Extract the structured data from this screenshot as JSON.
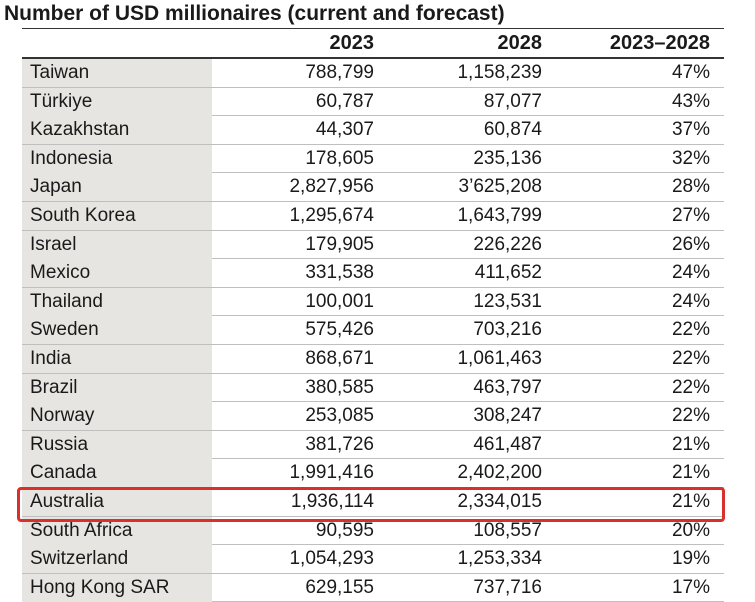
{
  "title": "Number of USD millionaires (current and forecast)",
  "columns": [
    "",
    "2023",
    "2028",
    "2023–2028"
  ],
  "rows": [
    {
      "country": "Taiwan",
      "y2023": "788,799",
      "y2028": "1,158,239",
      "growth": "47%"
    },
    {
      "country": "Türkiye",
      "y2023": "60,787",
      "y2028": "87,077",
      "growth": "43%"
    },
    {
      "country": "Kazakhstan",
      "y2023": "44,307",
      "y2028": "60,874",
      "growth": "37%"
    },
    {
      "country": "Indonesia",
      "y2023": "178,605",
      "y2028": "235,136",
      "growth": "32%"
    },
    {
      "country": "Japan",
      "y2023": "2,827,956",
      "y2028": "3’625,208",
      "growth": "28%"
    },
    {
      "country": "South Korea",
      "y2023": "1,295,674",
      "y2028": "1,643,799",
      "growth": "27%"
    },
    {
      "country": "Israel",
      "y2023": "179,905",
      "y2028": "226,226",
      "growth": "26%"
    },
    {
      "country": "Mexico",
      "y2023": "331,538",
      "y2028": "411,652",
      "growth": "24%"
    },
    {
      "country": "Thailand",
      "y2023": "100,001",
      "y2028": "123,531",
      "growth": "24%"
    },
    {
      "country": "Sweden",
      "y2023": "575,426",
      "y2028": "703,216",
      "growth": "22%"
    },
    {
      "country": "India",
      "y2023": "868,671",
      "y2028": "1,061,463",
      "growth": "22%"
    },
    {
      "country": "Brazil",
      "y2023": "380,585",
      "y2028": "463,797",
      "growth": "22%"
    },
    {
      "country": "Norway",
      "y2023": "253,085",
      "y2028": "308,247",
      "growth": "22%"
    },
    {
      "country": "Russia",
      "y2023": "381,726",
      "y2028": "461,487",
      "growth": "21%"
    },
    {
      "country": "Canada",
      "y2023": "1,991,416",
      "y2028": "2,402,200",
      "growth": "21%"
    },
    {
      "country": "Australia",
      "y2023": "1,936,114",
      "y2028": "2,334,015",
      "growth": "21%",
      "highlighted": true
    },
    {
      "country": "South Africa",
      "y2023": "90,595",
      "y2028": "108,557",
      "growth": "20%"
    },
    {
      "country": "Switzerland",
      "y2023": "1,054,293",
      "y2028": "1,253,334",
      "growth": "19%"
    },
    {
      "country": "Hong Kong SAR",
      "y2023": "629,155",
      "y2028": "737,716",
      "growth": "17%"
    }
  ],
  "highlight_color": "#d9302c"
}
